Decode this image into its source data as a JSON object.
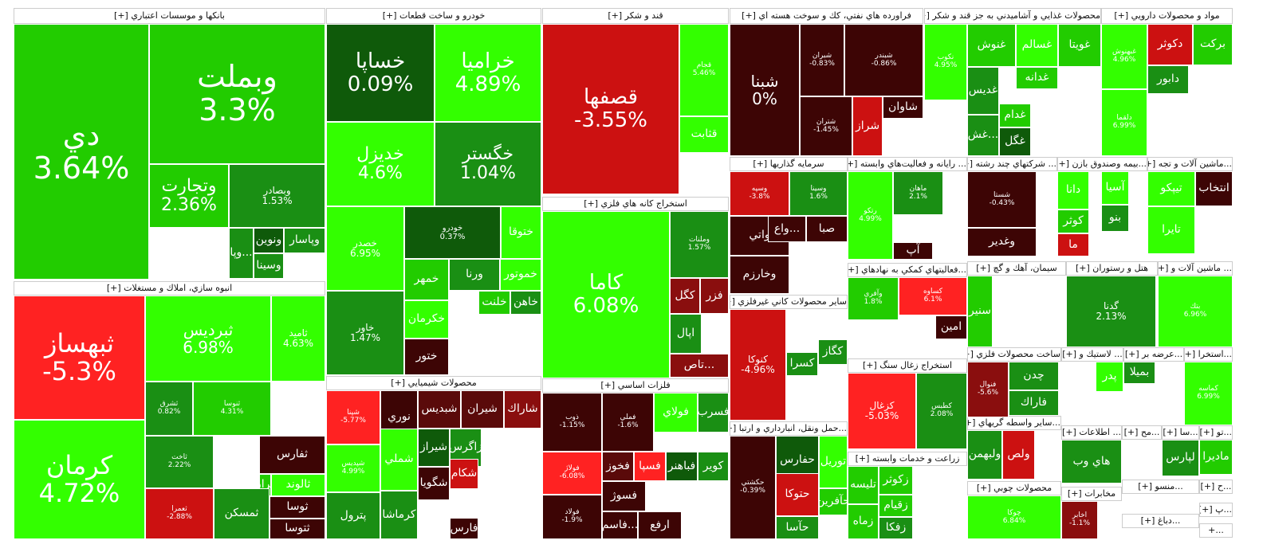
{
  "chart_data": {
    "type": "treemap",
    "colors": {
      "g3": "#33ff00",
      "g2": "#22cc00",
      "g1": "#1a8f14",
      "g0": "#0f5a0a",
      "r0": "#5a0a0a",
      "r1": "#8a0e0e",
      "r2": "#cc1111",
      "r3": "#ff2222",
      "dark": "#3d0505"
    },
    "sectors": [
      {
        "name": "بانكها و موسسات اعتباري [+]"
      },
      {
        "name": "انبوه سازي، املاك و مستغلات [+]"
      },
      {
        "name": "خودرو و ساخت قطعات [+]"
      },
      {
        "name": "محصولات شيميايي [+]"
      },
      {
        "name": "قند و شكر [+]"
      },
      {
        "name": "استخراج كانه هاي فلزي [+]"
      },
      {
        "name": "فلزات اساسي [+]"
      },
      {
        "name": "فراورده هاي نفتي، كك و سوخت هسته اي [+]"
      },
      {
        "name": "محصولات غذايي و آشاميدني به جز قند و شكر [+]"
      },
      {
        "name": "مواد و محصولات دارويي [+]"
      },
      {
        "name": "سرمايه گذاريها [+]"
      },
      {
        "name": "... رايانه و فعاليت‌هاي وابسته [+]"
      },
      {
        "name": "... شركتهاي چند رشته [+]"
      },
      {
        "name": "...بيمه وصندوق بازن [+]"
      },
      {
        "name": "...ماشين آلات و تجه [+]"
      },
      {
        "name": "...فعاليتهاي كمكي به نهادهاي [+]"
      },
      {
        "name": "ساير محصولات كاني غيرفلزي [+]"
      },
      {
        "name": "استخراج زغال سنگ [+]"
      },
      {
        "name": "...حمل ونقل، انبارداري و ارتبا [+]"
      },
      {
        "name": "زراعت و خدمات وابسته [+]"
      },
      {
        "name": "سيمان، آهك و گچ [+]"
      },
      {
        "name": "هتل و رستوران [+]"
      },
      {
        "name": "... ماشين آلات و [+]"
      },
      {
        "name": "ساخت محصولات فلزي [+]"
      },
      {
        "name": "... لاستيك و [+]"
      },
      {
        "name": "...عرضه بر [+]"
      },
      {
        "name": "...استخرا [+]"
      },
      {
        "name": "...ساير واسطه گريهاي [+]"
      },
      {
        "name": "... اطلاعات [+]"
      },
      {
        "name": "...مح [+]"
      },
      {
        "name": "...سا [+]"
      },
      {
        "name": "...تو [+]"
      },
      {
        "name": "محصولات چوبي [+]"
      },
      {
        "name": "مخابرات [+]"
      },
      {
        "name": "...منسو [+]"
      },
      {
        "name": "...ح [+]"
      },
      {
        "name": "...دباغ [+]"
      },
      {
        "name": "...پ [+]"
      },
      {
        "name": "...+"
      }
    ],
    "tiles": [
      {
        "sym": "دي",
        "pct": "3.64%",
        "c": "g2"
      },
      {
        "sym": "وبملت",
        "pct": "3.3%",
        "c": "g2"
      },
      {
        "sym": "وتجارت",
        "pct": "2.36%",
        "c": "g2"
      },
      {
        "sym": "وبصادر",
        "pct": "1.53%",
        "c": "g1"
      },
      {
        "sym": "ونوين",
        "pct": "",
        "c": "g0"
      },
      {
        "sym": "وپاسار",
        "pct": "",
        "c": "g1"
      },
      {
        "sym": "وسينا",
        "pct": "",
        "c": "g1"
      },
      {
        "sym": "وپا...",
        "pct": "",
        "c": "g1"
      },
      {
        "sym": "ثبهساز",
        "pct": "-5.3%",
        "c": "r3"
      },
      {
        "sym": "ثبرديس",
        "pct": "6.98%",
        "c": "g3"
      },
      {
        "sym": "ثاميد",
        "pct": "4.63%",
        "c": "g3"
      },
      {
        "sym": "كرمان",
        "pct": "4.72%",
        "c": "g3"
      },
      {
        "sym": "ثشرق",
        "pct": "0.82%",
        "c": "g1"
      },
      {
        "sym": "ثنوسا",
        "pct": "4.31%",
        "c": "g2"
      },
      {
        "sym": "ثاخت",
        "pct": "2.22%",
        "c": "g1"
      },
      {
        "sym": "ثعمرا",
        "pct": "-2.88%",
        "c": "r2"
      },
      {
        "sym": "ثفارس",
        "pct": "",
        "c": "dark"
      },
      {
        "sym": "ثالوند",
        "pct": "",
        "c": "g3"
      },
      {
        "sym": "ثتران",
        "pct": "",
        "c": "g2"
      },
      {
        "sym": "ثمسكن",
        "pct": "",
        "c": "g1"
      },
      {
        "sym": "ثوسا",
        "pct": "",
        "c": "dark"
      },
      {
        "sym": "ثتوسا",
        "pct": "",
        "c": "dark"
      },
      {
        "sym": "خساپا",
        "pct": "0.09%",
        "c": "g0"
      },
      {
        "sym": "خراميا",
        "pct": "4.89%",
        "c": "g3"
      },
      {
        "sym": "خديزل",
        "pct": "4.6%",
        "c": "g3"
      },
      {
        "sym": "خگستر",
        "pct": "1.04%",
        "c": "g1"
      },
      {
        "sym": "خصدر",
        "pct": "6.95%",
        "c": "g3"
      },
      {
        "sym": "خودرو",
        "pct": "0.37%",
        "c": "g0"
      },
      {
        "sym": "ختوقا",
        "pct": "",
        "c": "g3"
      },
      {
        "sym": "خاور",
        "pct": "1.47%",
        "c": "g1"
      },
      {
        "sym": "خمهر",
        "pct": "",
        "c": "g2"
      },
      {
        "sym": "ورنا",
        "pct": "",
        "c": "g1"
      },
      {
        "sym": "خموتور",
        "pct": "",
        "c": "g3"
      },
      {
        "sym": "خكرمان",
        "pct": "",
        "c": "g3"
      },
      {
        "sym": "خلنت",
        "pct": "",
        "c": "g2"
      },
      {
        "sym": "خاهن",
        "pct": "",
        "c": "g1"
      },
      {
        "sym": "ختور",
        "pct": "",
        "c": "dark"
      },
      {
        "sym": "شپنا",
        "pct": "-5.77%",
        "c": "r3"
      },
      {
        "sym": "نوري",
        "pct": "",
        "c": "dark"
      },
      {
        "sym": "شبديس",
        "pct": "",
        "c": "r0"
      },
      {
        "sym": "شيران",
        "pct": "",
        "c": "r0"
      },
      {
        "sym": "شاراك",
        "pct": "",
        "c": "r1"
      },
      {
        "sym": "شپديس",
        "pct": "4.99%",
        "c": "g3"
      },
      {
        "sym": "شملي",
        "pct": "",
        "c": "g3"
      },
      {
        "sym": "شيراز",
        "pct": "",
        "c": "g0"
      },
      {
        "sym": "زاگرس",
        "pct": "",
        "c": "g1"
      },
      {
        "sym": "پترول",
        "pct": "",
        "c": "g1"
      },
      {
        "sym": "كرماشا",
        "pct": "",
        "c": "g1"
      },
      {
        "sym": "شگويا",
        "pct": "",
        "c": "dark"
      },
      {
        "sym": "شكام",
        "pct": "",
        "c": "r2"
      },
      {
        "sym": "فارس",
        "pct": "",
        "c": "dark"
      },
      {
        "sym": "قصفها",
        "pct": "-3.55%",
        "c": "r2"
      },
      {
        "sym": "قجام",
        "pct": "5.46%",
        "c": "g3"
      },
      {
        "sym": "قثابت",
        "pct": "",
        "c": "g3"
      },
      {
        "sym": "كاما",
        "pct": "6.08%",
        "c": "g3"
      },
      {
        "sym": "وملنات",
        "pct": "1.57%",
        "c": "g1"
      },
      {
        "sym": "كگل",
        "pct": "",
        "c": "r1"
      },
      {
        "sym": "فزر",
        "pct": "",
        "c": "r1"
      },
      {
        "sym": "اپال",
        "pct": "",
        "c": "g1"
      },
      {
        "sym": "تاص...",
        "pct": "",
        "c": "r1"
      },
      {
        "sym": "ذوب",
        "pct": "-1.15%",
        "c": "dark"
      },
      {
        "sym": "فملي",
        "pct": "-1.6%",
        "c": "dark"
      },
      {
        "sym": "فولاژ",
        "pct": "-6.08%",
        "c": "r3"
      },
      {
        "sym": "فولاد",
        "pct": "-1.9%",
        "c": "dark"
      },
      {
        "sym": "فولاي",
        "pct": "",
        "c": "g3"
      },
      {
        "sym": "فسرب",
        "pct": "",
        "c": "g1"
      },
      {
        "sym": "فخوز",
        "pct": "",
        "c": "r0"
      },
      {
        "sym": "فسپا",
        "pct": "",
        "c": "r3"
      },
      {
        "sym": "فباهنر",
        "pct": "",
        "c": "g0"
      },
      {
        "sym": "كوير",
        "pct": "",
        "c": "g1"
      },
      {
        "sym": "فسوژ",
        "pct": "",
        "c": "dark"
      },
      {
        "sym": "فاسم...",
        "pct": "",
        "c": "dark"
      },
      {
        "sym": "ارفع",
        "pct": "",
        "c": "dark"
      },
      {
        "sym": "شبنا",
        "pct": "0%",
        "c": "dark"
      },
      {
        "sym": "شبران",
        "pct": "-0.83%",
        "c": "dark"
      },
      {
        "sym": "شبندر",
        "pct": "-0.86%",
        "c": "dark"
      },
      {
        "sym": "شتران",
        "pct": "-1.45%",
        "c": "dark"
      },
      {
        "sym": "شراز",
        "pct": "",
        "c": "r2"
      },
      {
        "sym": "شاوان",
        "pct": "",
        "c": "dark"
      },
      {
        "sym": "نكوب",
        "pct": "4.95%",
        "c": "g3"
      },
      {
        "sym": "غنوش",
        "pct": "",
        "c": "g2"
      },
      {
        "sym": "غسالم",
        "pct": "",
        "c": "g3"
      },
      {
        "sym": "غويتا",
        "pct": "",
        "c": "g2"
      },
      {
        "sym": "غدانه",
        "pct": "",
        "c": "g2"
      },
      {
        "sym": "غديس",
        "pct": "",
        "c": "g1"
      },
      {
        "sym": "غدام",
        "pct": "",
        "c": "g2"
      },
      {
        "sym": "غگل",
        "pct": "",
        "c": "g0"
      },
      {
        "sym": "غش...",
        "pct": "",
        "c": "g1"
      },
      {
        "sym": "غبهنوش",
        "pct": "4.96%",
        "c": "g3"
      },
      {
        "sym": "دكوثر",
        "pct": "",
        "c": "r2"
      },
      {
        "sym": "بركت",
        "pct": "",
        "c": "g2"
      },
      {
        "sym": "دابور",
        "pct": "",
        "c": "g1"
      },
      {
        "sym": "دلقما",
        "pct": "6.99%",
        "c": "g3"
      },
      {
        "sym": "وسپه",
        "pct": "-3.8%",
        "c": "r2"
      },
      {
        "sym": "وسينا",
        "pct": "1.6%",
        "c": "g1"
      },
      {
        "sym": "واتي",
        "pct": "",
        "c": "dark"
      },
      {
        "sym": "واع...",
        "pct": "",
        "c": "dark"
      },
      {
        "sym": "صبا",
        "pct": "",
        "c": "dark"
      },
      {
        "sym": "وخارزم",
        "pct": "",
        "c": "dark"
      },
      {
        "sym": "رتكو",
        "pct": "4.99%",
        "c": "g3"
      },
      {
        "sym": "ماهان",
        "pct": "2.1%",
        "c": "g1"
      },
      {
        "sym": "آپ",
        "pct": "",
        "c": "dark"
      },
      {
        "sym": "شستا",
        "pct": "-0.43%",
        "c": "dark"
      },
      {
        "sym": "وغدير",
        "pct": "",
        "c": "dark"
      },
      {
        "sym": "دانا",
        "pct": "",
        "c": "g3"
      },
      {
        "sym": "آسيا",
        "pct": "",
        "c": "g3"
      },
      {
        "sym": "كوثر",
        "pct": "",
        "c": "g2"
      },
      {
        "sym": "بنو",
        "pct": "",
        "c": "g1"
      },
      {
        "sym": "ما",
        "pct": "",
        "c": "r2"
      },
      {
        "sym": "تيپكو",
        "pct": "",
        "c": "g3"
      },
      {
        "sym": "انتخاب",
        "pct": "",
        "c": "dark"
      },
      {
        "sym": "تايرا",
        "pct": "",
        "c": "g3"
      },
      {
        "sym": "وآفري",
        "pct": "1.8%",
        "c": "g2"
      },
      {
        "sym": "امين",
        "pct": "",
        "c": "dark"
      },
      {
        "sym": "كساوه",
        "pct": "6.1%",
        "c": "r3"
      },
      {
        "sym": "كنوكا",
        "pct": "-4.96%",
        "c": "r2"
      },
      {
        "sym": "كسرا",
        "pct": "",
        "c": "g1"
      },
      {
        "sym": "كگاز",
        "pct": "",
        "c": "g1"
      },
      {
        "sym": "كزغال",
        "pct": "-5.03%",
        "c": "r3"
      },
      {
        "sym": "كطبس",
        "pct": "2.08%",
        "c": "g1"
      },
      {
        "sym": "حكشتي",
        "pct": "-0.39%",
        "c": "dark"
      },
      {
        "sym": "حفارس",
        "pct": "",
        "c": "g0"
      },
      {
        "sym": "توريل",
        "pct": "",
        "c": "g3"
      },
      {
        "sym": "حآفرين",
        "pct": "",
        "c": "g2"
      },
      {
        "sym": "حتوكا",
        "pct": "",
        "c": "r2"
      },
      {
        "sym": "حآسا",
        "pct": "",
        "c": "g1"
      },
      {
        "sym": "زكوثر",
        "pct": "",
        "c": "g2"
      },
      {
        "sym": "زقيام",
        "pct": "",
        "c": "g2"
      },
      {
        "sym": "زماه",
        "pct": "",
        "c": "g2"
      },
      {
        "sym": "زفكا",
        "pct": "",
        "c": "g1"
      },
      {
        "sym": "تليسه",
        "pct": "",
        "c": "g2"
      },
      {
        "sym": "سنير",
        "pct": "",
        "c": "g2"
      },
      {
        "sym": "گدنا",
        "pct": "2.13%",
        "c": "g1"
      },
      {
        "sym": "بتك",
        "pct": "6.96%",
        "c": "g3"
      },
      {
        "sym": "فنوال",
        "pct": "-5.6%",
        "c": "r1"
      },
      {
        "sym": "چدن",
        "pct": "",
        "c": "g1"
      },
      {
        "sym": "فاراك",
        "pct": "",
        "c": "g1"
      },
      {
        "sym": "پدر",
        "pct": "",
        "c": "g3"
      },
      {
        "sym": "بميلا",
        "pct": "",
        "c": "g1"
      },
      {
        "sym": "كماسه",
        "pct": "6.99%",
        "c": "g3"
      },
      {
        "sym": "ولبهمن",
        "pct": "",
        "c": "g1"
      },
      {
        "sym": "ولص",
        "pct": "",
        "c": "r2"
      },
      {
        "sym": "هاي وب",
        "pct": "",
        "c": "g1"
      },
      {
        "sym": "لپارس",
        "pct": "",
        "c": "g1"
      },
      {
        "sym": "ماديرا",
        "pct": "",
        "c": "g2"
      },
      {
        "sym": "چوكا",
        "pct": "6.84%",
        "c": "g3"
      },
      {
        "sym": "اخابر",
        "pct": "-1.1%",
        "c": "r1"
      }
    ]
  }
}
